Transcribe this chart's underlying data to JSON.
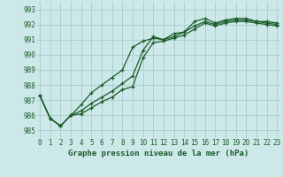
{
  "title": "Graphe pression niveau de la mer (hPa)",
  "bg_color": "#cce8e8",
  "grid_color": "#aacccc",
  "line_color": "#1a5c2a",
  "ylim": [
    984.5,
    993.5
  ],
  "yticks": [
    985,
    986,
    987,
    988,
    989,
    990,
    991,
    992,
    993
  ],
  "xlim": [
    -0.3,
    23.3
  ],
  "xticks": [
    0,
    1,
    2,
    3,
    4,
    5,
    6,
    7,
    8,
    9,
    10,
    11,
    12,
    13,
    14,
    15,
    16,
    17,
    18,
    19,
    20,
    21,
    22,
    23
  ],
  "series": [
    [
      987.3,
      985.8,
      985.3,
      986.0,
      986.7,
      987.5,
      988.0,
      988.5,
      989.0,
      990.5,
      990.9,
      991.1,
      991.0,
      991.4,
      991.5,
      992.2,
      992.4,
      992.1,
      992.3,
      992.4,
      992.4,
      992.2,
      992.2,
      992.1
    ],
    [
      987.3,
      985.8,
      985.3,
      986.0,
      986.3,
      986.8,
      987.2,
      987.6,
      988.1,
      988.6,
      990.3,
      991.2,
      991.0,
      991.2,
      991.5,
      991.9,
      992.2,
      992.0,
      992.2,
      992.3,
      992.3,
      992.2,
      992.1,
      992.0
    ],
    [
      987.3,
      985.8,
      985.3,
      986.0,
      986.1,
      986.5,
      986.9,
      987.2,
      987.7,
      987.9,
      989.8,
      990.8,
      990.9,
      991.1,
      991.3,
      991.7,
      992.1,
      991.9,
      992.1,
      992.2,
      992.2,
      992.1,
      992.0,
      991.9
    ]
  ],
  "title_fontsize": 6.5,
  "tick_fontsize": 5.5
}
